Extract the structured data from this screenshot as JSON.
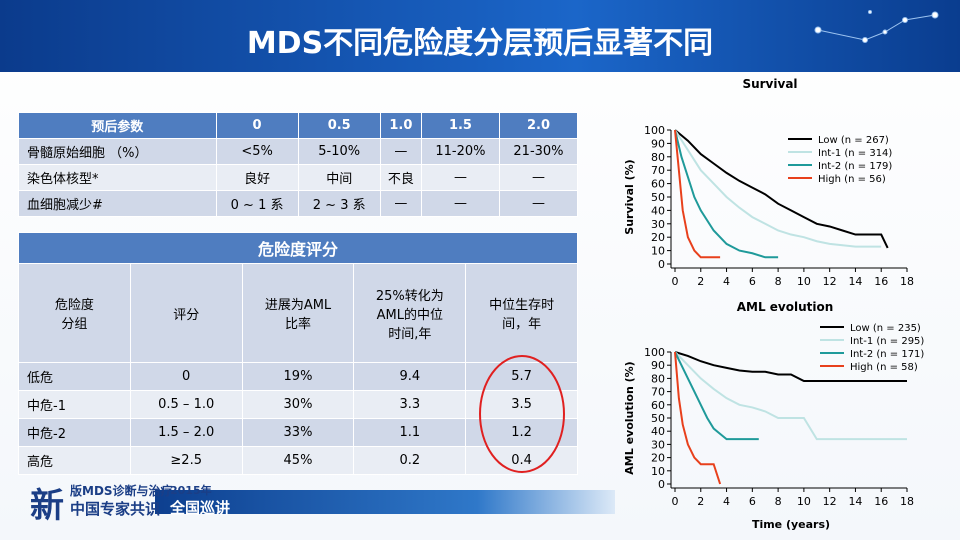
{
  "header": {
    "title": "MDS不同危险度分层预后显著不同"
  },
  "table1": {
    "header": [
      "预后参数",
      "0",
      "0.5",
      "1.0",
      "1.5",
      "2.0"
    ],
    "rows": [
      [
        "骨髓原始细胞 （%）",
        "<5%",
        "5-10%",
        "—",
        "11-20%",
        "21-30%"
      ],
      [
        "染色体核型*",
        "良好",
        "中间",
        "不良",
        "—",
        "—"
      ],
      [
        "血细胞减少#",
        "0 ~ 1 系",
        "2 ~ 3 系",
        "—",
        "—",
        "—"
      ]
    ]
  },
  "table2": {
    "title": "危险度评分",
    "header": [
      [
        "危险度",
        "分组"
      ],
      [
        "评分"
      ],
      [
        "进展为AML",
        "比率"
      ],
      [
        "25%转化为",
        "AML的中位",
        "时间,年"
      ],
      [
        "中位生存时",
        "间，年"
      ]
    ],
    "rows": [
      [
        "低危",
        "0",
        "19%",
        "9.4",
        "5.7"
      ],
      [
        "中危-1",
        "0.5 – 1.0",
        "30%",
        "3.3",
        "3.5"
      ],
      [
        "中危-2",
        "1.5 – 2.0",
        "33%",
        "1.1",
        "1.2"
      ],
      [
        "高危",
        "≥2.5",
        "45%",
        "0.2",
        "0.4"
      ]
    ]
  },
  "banner": {
    "big": "新",
    "line1": "版MDS诊断与治疗",
    "line2": "中国专家共识",
    "year": "2015年",
    "tour": "全国巡讲"
  },
  "chart_data": [
    {
      "type": "line",
      "title": "Survival",
      "y_label": "Survival (%)",
      "xlim": [
        0,
        18
      ],
      "ylim": [
        0,
        100
      ],
      "xticks": [
        0,
        2,
        4,
        6,
        8,
        10,
        12,
        14,
        16,
        18
      ],
      "yticks": [
        0,
        10,
        20,
        30,
        40,
        50,
        60,
        70,
        80,
        90,
        100
      ],
      "series": [
        {
          "name": "Low (n = 267)",
          "color": "#000000",
          "x": [
            0,
            1,
            2,
            3,
            4,
            5,
            6,
            7,
            8,
            9,
            10,
            11,
            12,
            13,
            14,
            15,
            16,
            16.5
          ],
          "values": [
            100,
            92,
            82,
            75,
            68,
            62,
            57,
            52,
            45,
            40,
            35,
            30,
            28,
            25,
            22,
            22,
            22,
            12
          ]
        },
        {
          "name": "Int-1 (n = 314)",
          "color": "#bfe3e3",
          "x": [
            0,
            1,
            2,
            3,
            4,
            5,
            6,
            7,
            8,
            9,
            10,
            11,
            12,
            13,
            14,
            15,
            16
          ],
          "values": [
            100,
            85,
            70,
            60,
            50,
            42,
            35,
            30,
            25,
            22,
            20,
            17,
            15,
            14,
            13,
            13,
            13
          ]
        },
        {
          "name": "Int-2 (n = 179)",
          "color": "#1f9a9a",
          "x": [
            0,
            0.5,
            1,
            1.5,
            2,
            3,
            4,
            5,
            6,
            7,
            8
          ],
          "values": [
            100,
            80,
            65,
            50,
            40,
            25,
            15,
            10,
            8,
            5,
            5
          ]
        },
        {
          "name": "High (n = 56)",
          "color": "#e8401c",
          "x": [
            0,
            0.3,
            0.6,
            1,
            1.5,
            2,
            3,
            3.5
          ],
          "values": [
            100,
            70,
            40,
            20,
            10,
            5,
            5,
            5
          ]
        }
      ]
    },
    {
      "type": "line",
      "title": "AML evolution",
      "y_label": "AML evolution (%)",
      "x_label": "Time (years)",
      "xlim": [
        0,
        18
      ],
      "ylim": [
        0,
        100
      ],
      "xticks": [
        0,
        2,
        4,
        6,
        8,
        10,
        12,
        14,
        16,
        18
      ],
      "yticks": [
        0,
        10,
        20,
        30,
        40,
        50,
        60,
        70,
        80,
        90,
        100
      ],
      "series": [
        {
          "name": "Low (n = 235)",
          "color": "#000000",
          "x": [
            0,
            1,
            2,
            3,
            4,
            5,
            6,
            7,
            8,
            9,
            10,
            18
          ],
          "values": [
            100,
            97,
            93,
            90,
            88,
            86,
            85,
            85,
            83,
            83,
            78,
            78
          ]
        },
        {
          "name": "Int-1 (n = 295)",
          "color": "#bfe3e3",
          "x": [
            0,
            1,
            2,
            3,
            4,
            5,
            6,
            7,
            8,
            9,
            10,
            11,
            18
          ],
          "values": [
            100,
            90,
            80,
            72,
            65,
            60,
            58,
            55,
            50,
            50,
            50,
            34,
            34
          ]
        },
        {
          "name": "Int-2 (n = 171)",
          "color": "#1f9a9a",
          "x": [
            0,
            0.5,
            1,
            1.5,
            2,
            2.5,
            3,
            3.5,
            4,
            6.5
          ],
          "values": [
            100,
            90,
            80,
            70,
            60,
            50,
            42,
            38,
            34,
            34
          ]
        },
        {
          "name": "High (n = 58)",
          "color": "#e8401c",
          "x": [
            0,
            0.3,
            0.6,
            1,
            1.5,
            2,
            3,
            3.5
          ],
          "values": [
            100,
            65,
            45,
            30,
            20,
            15,
            15,
            0
          ]
        }
      ]
    }
  ]
}
